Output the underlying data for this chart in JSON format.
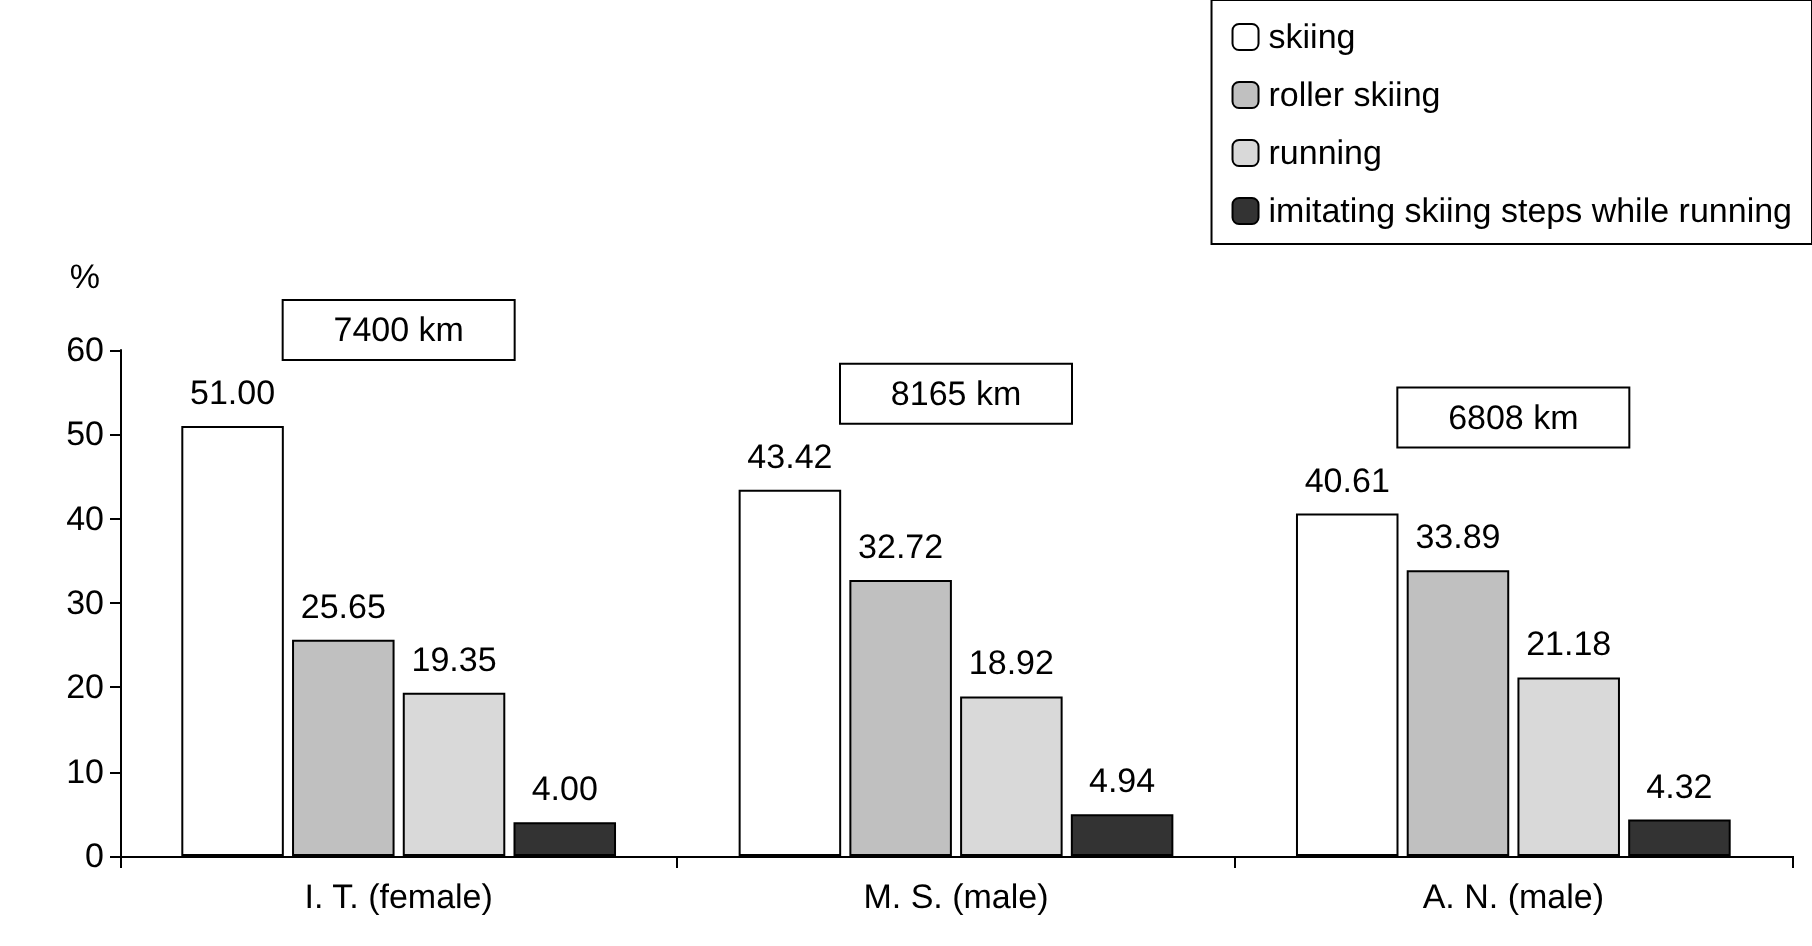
{
  "chart_data": {
    "type": "bar",
    "ylabel": "%",
    "categories": [
      "I. T. (female)",
      "M. S. (male)",
      "A. N. (male)"
    ],
    "series": [
      {
        "name": "skiing",
        "color": "#ffffff",
        "values": [
          51.0,
          43.42,
          40.61
        ],
        "value_labels": [
          "51.00",
          "43.42",
          "40.61"
        ]
      },
      {
        "name": "roller skiing",
        "color": "#c0c0c0",
        "values": [
          25.65,
          32.72,
          33.89
        ],
        "value_labels": [
          "25.65",
          "32.72",
          "33.89"
        ]
      },
      {
        "name": "running",
        "color": "#d9d9d9",
        "values": [
          19.35,
          18.92,
          21.18
        ],
        "value_labels": [
          "19.35",
          "18.92",
          "21.18"
        ]
      },
      {
        "name": "imitating skiing steps while running",
        "color": "#333333",
        "values": [
          4.0,
          4.94,
          4.32
        ],
        "value_labels": [
          "4.00",
          "4.94",
          "4.32"
        ]
      }
    ],
    "ylim": [
      0,
      60
    ],
    "yticks": [
      0,
      10,
      20,
      30,
      40,
      50,
      60
    ],
    "grid": false,
    "legend": "top right",
    "annotations": [
      "7400 km",
      "8165 km",
      "6808 km"
    ]
  }
}
